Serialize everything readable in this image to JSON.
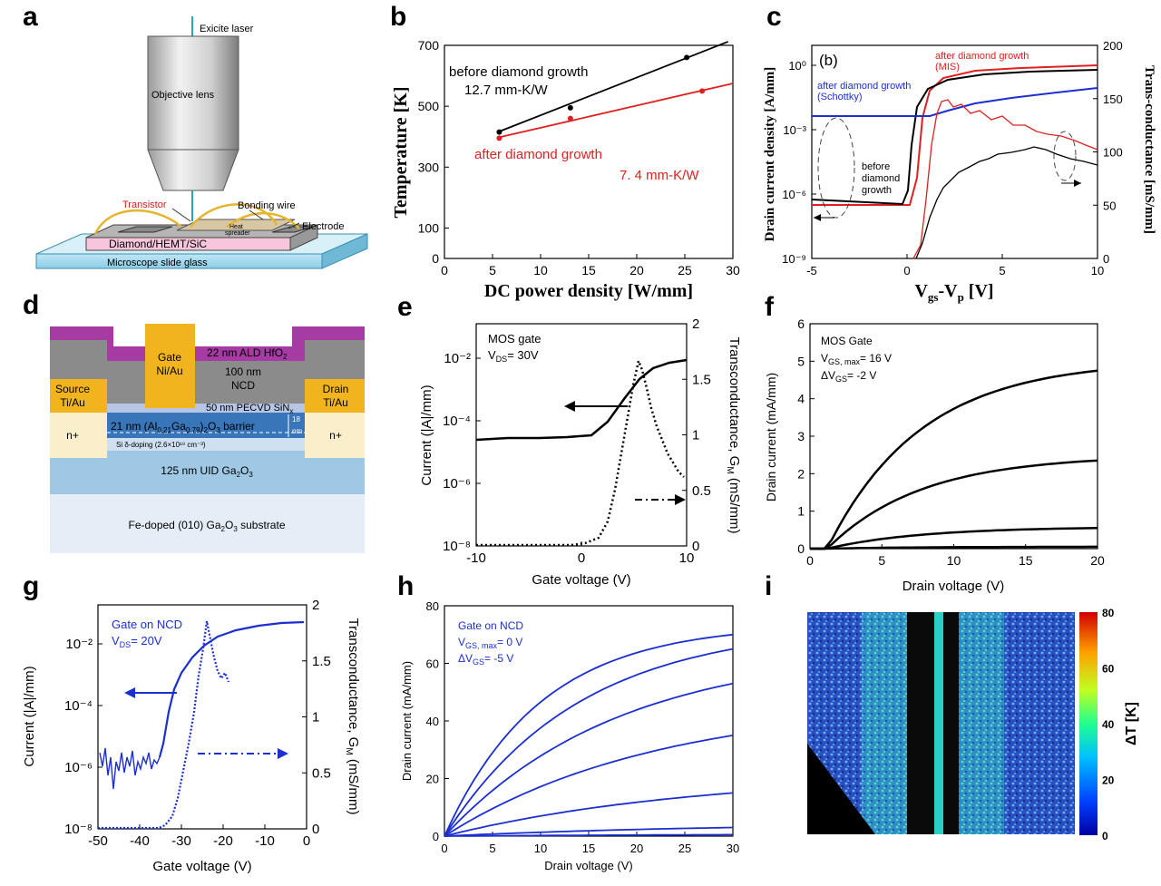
{
  "panels": {
    "a": {
      "label": "a",
      "texts": {
        "laser": "Exicite laser",
        "objective": "Objective lens",
        "transistor": "Transistor",
        "bonding": "Bonding wire",
        "electrode": "Electrode",
        "heat": "Heat",
        "spreader": "spreader",
        "chip": "Diamond/HEMT/SiC",
        "slide": "Microscope slide glass"
      }
    },
    "b": {
      "label": "b",
      "texts": {
        "before": "before diamond growth",
        "before_k": "12.7 mm-K/W",
        "after": "after diamond growth",
        "after_k": "7. 4 mm-K/W"
      }
    },
    "c": {
      "label": "c",
      "texts": {
        "inner": "(b)",
        "mis1": "after diamond growth",
        "mis2": "(MIS)",
        "sch1": "after diamond growth",
        "sch2": "(Schottky)",
        "bdg1": "before",
        "bdg2": "diamond",
        "bdg3": "growth"
      }
    },
    "d": {
      "label": "d",
      "texts": {
        "gate1": "Gate",
        "gate2": "Ni/Au",
        "ald": "22 nm ALD HfO",
        "ald_sub": "2",
        "ncd1": "100 nm",
        "ncd2": "NCD",
        "sin": "50 nm PECVD SiN",
        "sin_sub": "x",
        "src1": "Source",
        "src2": "Ti/Au",
        "drn1": "Drain",
        "drn2": "Ti/Au",
        "np": "n+",
        "barrier_a": "21 nm (Al",
        "barrier_b": "0.21",
        "barrier_c": "Ga",
        "barrier_d": "0.79",
        "barrier_e": ")",
        "barrier_f": "2",
        "barrier_g": "O",
        "barrier_h": "3",
        "barrier_i": " barrier",
        "t18": "18",
        "tnm": "nm",
        "doping": "Si δ-doping (2.6×10¹⁹ cm⁻³)",
        "uid": "125 nm UID Ga",
        "uid_b": "2",
        "uid_c": "O",
        "uid_d": "3",
        "sub": "Fe-doped (010) Ga",
        "sub_b": "2",
        "sub_c": "O",
        "sub_d": "3",
        "sub_e": " substrate"
      }
    },
    "e": {
      "label": "e",
      "texts": {
        "t1": "MOS gate",
        "t2a": "V",
        "t2b": "DS",
        "t2c": "= 30V"
      }
    },
    "f": {
      "label": "f",
      "texts": {
        "t1": "MOS Gate",
        "t2a": "V",
        "t2b": "GS, max",
        "t2c": "= 16 V",
        "t3a": "ΔV",
        "t3b": "GS",
        "t3c": "= -2 V"
      }
    },
    "g": {
      "label": "g",
      "texts": {
        "t1": "Gate on NCD",
        "t2a": "V",
        "t2b": "DS",
        "t2c": "= 20V"
      }
    },
    "h": {
      "label": "h",
      "texts": {
        "t1": "Gate on NCD",
        "t2a": "V",
        "t2b": "GS, max",
        "t2c": "= 0 V",
        "t3a": "ΔV",
        "t3b": "GS",
        "t3c": "= -5 V"
      }
    },
    "i": {
      "label": "i",
      "colorbar_label": "ΔT [K]",
      "colorbar_ticks": [
        "0",
        "20",
        "40",
        "60",
        "80"
      ]
    }
  },
  "chart_data": [
    {
      "id": "b",
      "type": "scatter",
      "xlabel": "DC power density [W/mm]",
      "ylabel": "Temperature [K]",
      "xlim": [
        0,
        30
      ],
      "ylim": [
        0,
        700
      ],
      "xticks": [
        "0",
        "5",
        "10",
        "15",
        "20",
        "25",
        "30"
      ],
      "yticks": [
        "0",
        "100",
        "300",
        "500",
        "700"
      ],
      "series": [
        {
          "name": "before diamond growth",
          "color": "#000000",
          "x": [
            5.7,
            13.1,
            25.2
          ],
          "y": [
            415,
            495,
            660
          ],
          "fit": [
            [
              5.7,
              417
            ],
            [
              29.5,
              712
            ]
          ]
        },
        {
          "name": "after diamond growth",
          "color": "#e02020",
          "x": [
            5.7,
            13.1,
            26.8
          ],
          "y": [
            395,
            460,
            550
          ],
          "fit": [
            [
              5.7,
              398
            ],
            [
              30,
              575
            ]
          ]
        }
      ]
    },
    {
      "id": "c",
      "type": "line",
      "xlabel": "V",
      "xlabel_sub": "gs",
      "xlabel_tail": "-V",
      "xlabel_sub2": "p",
      "xlabel_end": " [V]",
      "ylabel": "Drain current density [A/mm]",
      "y2label": "Trans-conductance [mS/mm]",
      "xlim": [
        -5,
        10
      ],
      "xticks": [
        "-5",
        "0",
        "5",
        "10"
      ],
      "yticks_log": [
        "10⁰",
        "10⁻³",
        "10⁻⁶",
        "10⁻⁹"
      ],
      "y2lim": [
        0,
        200
      ],
      "y2ticks": [
        "0",
        "50",
        "100",
        "150",
        "200"
      ]
    },
    {
      "id": "e",
      "type": "line",
      "xlabel": "Gate voltage (V)",
      "ylabel": "Current (|A|/mm)",
      "y2label": "Transconductance, G",
      "y2label_sub": "M",
      "y2label_tail": " (mS/mm)",
      "xlim": [
        -10,
        10
      ],
      "xticks": [
        "-10",
        "0",
        "10"
      ],
      "yticks": [
        "10⁻²",
        "10⁻⁴",
        "10⁻⁶",
        "10⁻⁸"
      ],
      "y2lim": [
        0,
        2
      ],
      "y2ticks": [
        "0",
        "0.5",
        "1",
        "1.5",
        "2"
      ]
    },
    {
      "id": "f",
      "type": "line",
      "xlabel": "Drain voltage (V)",
      "ylabel": "Drain current (mA/mm)",
      "xlim": [
        0,
        20
      ],
      "ylim": [
        0,
        6
      ],
      "xticks": [
        "0",
        "5",
        "10",
        "15",
        "20"
      ],
      "yticks": [
        "0",
        "1",
        "2",
        "3",
        "4",
        "5",
        "6"
      ],
      "series_end_values": [
        4.75,
        2.35,
        0.55,
        0.05
      ]
    },
    {
      "id": "g",
      "type": "line",
      "xlabel": "Gate voltage (V)",
      "ylabel": "Current (|A|/mm)",
      "y2label": "Transconductance, G",
      "y2label_sub": "M",
      "y2label_tail": " (mS/mm)",
      "xlim": [
        -50,
        0
      ],
      "xticks": [
        "-50",
        "-40",
        "-30",
        "-20",
        "-10",
        "0"
      ],
      "yticks": [
        "10⁻²",
        "10⁻⁴",
        "10⁻⁶",
        "10⁻⁸"
      ],
      "y2lim": [
        0,
        2
      ],
      "y2ticks": [
        "0",
        "0.5",
        "1",
        "1.5",
        "2"
      ]
    },
    {
      "id": "h",
      "type": "line",
      "xlabel": "Drain voltage (V)",
      "ylabel": "Drain current (mA/mm)",
      "xlim": [
        0,
        30
      ],
      "ylim": [
        0,
        80
      ],
      "xticks": [
        "0",
        "5",
        "10",
        "15",
        "20",
        "25",
        "30"
      ],
      "yticks": [
        "0",
        "20",
        "40",
        "60",
        "80"
      ],
      "series_end_values": [
        70,
        65,
        53,
        35,
        15,
        3,
        0.5
      ]
    }
  ]
}
